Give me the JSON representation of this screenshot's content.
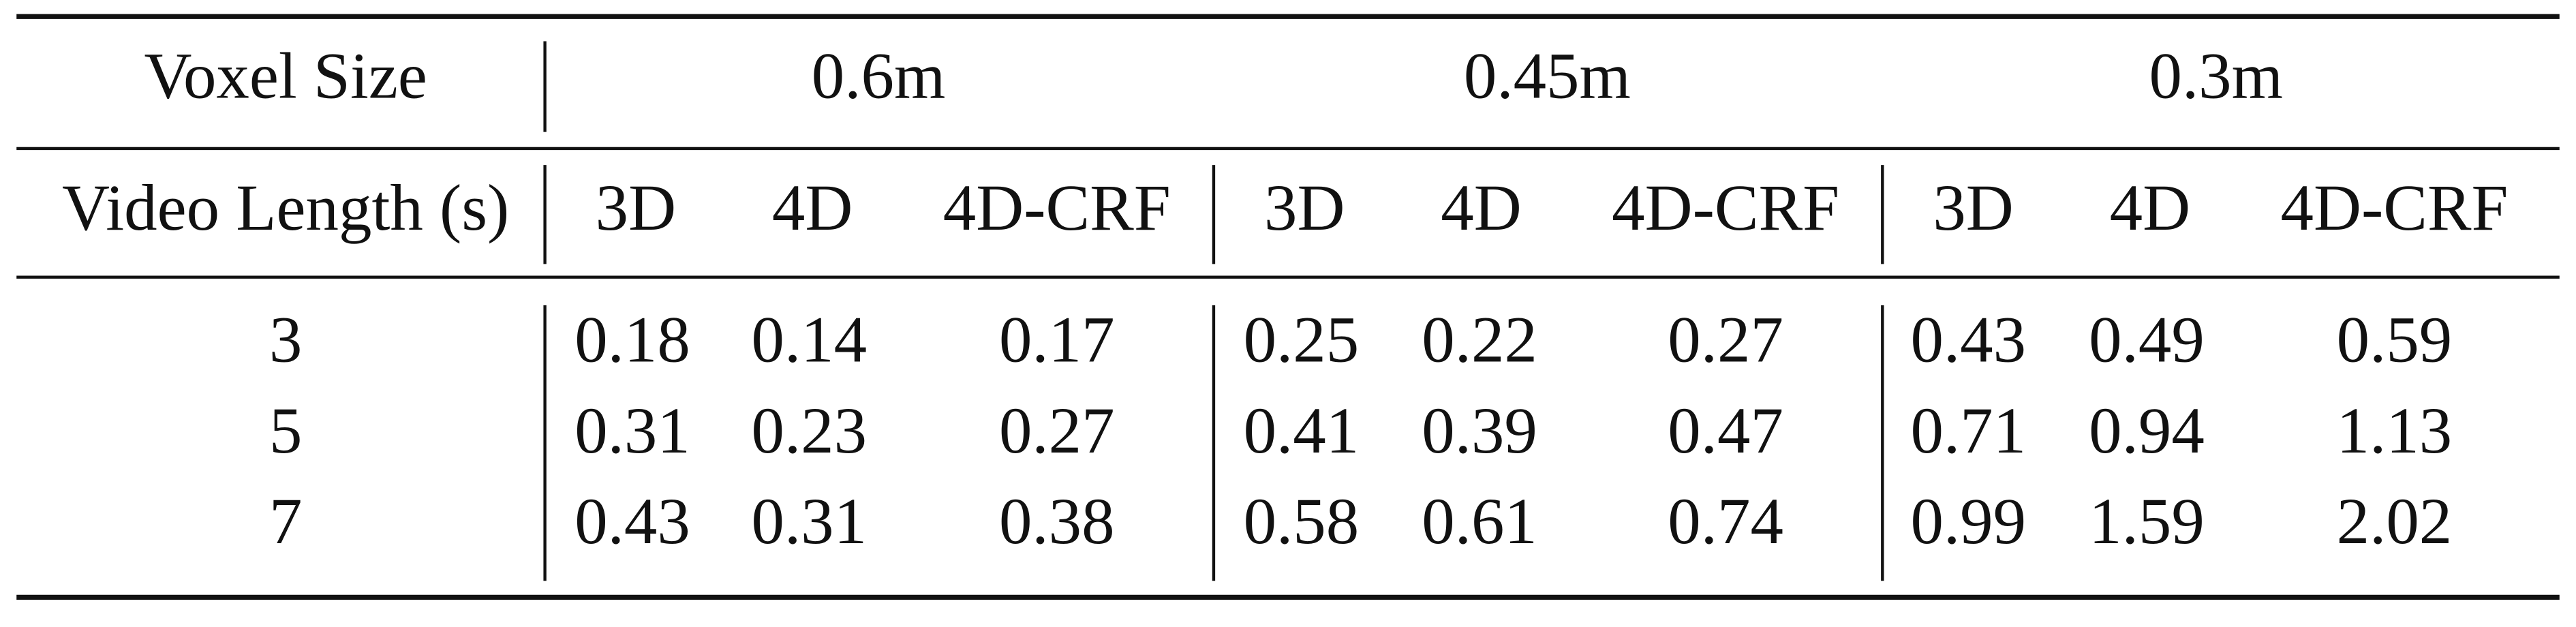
{
  "table": {
    "header": {
      "voxel_label": "Voxel Size",
      "voxel_sizes": [
        "0.6m",
        "0.45m",
        "0.3m"
      ],
      "length_label": "Video Length (s)",
      "methods": [
        "3D",
        "4D",
        "4D-CRF",
        "3D",
        "4D",
        "4D-CRF",
        "3D",
        "4D",
        "4D-CRF"
      ]
    },
    "rows": [
      [
        3,
        0.18,
        0.14,
        0.17,
        0.25,
        0.22,
        0.27,
        0.43,
        0.49,
        0.59
      ],
      [
        5,
        0.31,
        0.23,
        0.27,
        0.41,
        0.39,
        0.47,
        0.71,
        0.94,
        1.13
      ],
      [
        7,
        0.43,
        0.31,
        0.38,
        0.58,
        0.61,
        0.74,
        0.99,
        1.59,
        2.02
      ]
    ]
  }
}
